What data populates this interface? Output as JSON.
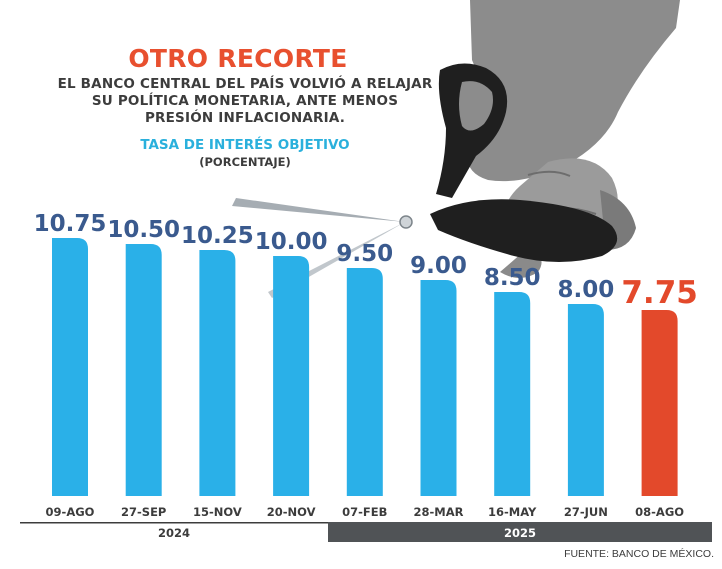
{
  "headline": "OTRO RECORTE",
  "subtitle_lines": [
    "EL BANCO CENTRAL DEL PAÍS VOLVIÓ A RELAJAR",
    "SU POLÍTICA MONETARIA, ANTE MENOS",
    "PRESIÓN INFLACIONARIA."
  ],
  "source": "FUENTE: BANCO DE MÉXICO.",
  "colors": {
    "bar": "#2ab0e8",
    "bar_highlight": "#e3492b",
    "value_label": "#3a5a8e",
    "headline": "#e8502f",
    "year_band_2025": "#505356"
  },
  "chart_data": {
    "type": "bar",
    "title": "TASA DE INTERÉS OBJETIVO",
    "unit": "(PORCENTAJE)",
    "categories": [
      "09-AGO",
      "27-SEP",
      "15-NOV",
      "20-NOV",
      "07-FEB",
      "28-MAR",
      "16-MAY",
      "27-JUN",
      "08-AGO"
    ],
    "values": [
      10.75,
      10.5,
      10.25,
      10.0,
      9.5,
      9.0,
      8.5,
      8.0,
      7.75
    ],
    "value_labels": [
      "10.75",
      "10.50",
      "10.25",
      "10.00",
      "9.50",
      "9.00",
      "8.50",
      "8.00",
      "7.75"
    ],
    "years": [
      {
        "label": "2024",
        "categories": [
          "09-AGO",
          "27-SEP",
          "15-NOV",
          "20-NOV"
        ]
      },
      {
        "label": "2025",
        "categories": [
          "07-FEB",
          "28-MAR",
          "16-MAY",
          "27-JUN",
          "08-AGO"
        ]
      }
    ],
    "highlight_index": 8,
    "ylim": [
      0,
      10.75
    ],
    "grid": false
  },
  "illustration": {
    "name": "scissors-hand-illustration",
    "icon": "scissors-icon"
  }
}
